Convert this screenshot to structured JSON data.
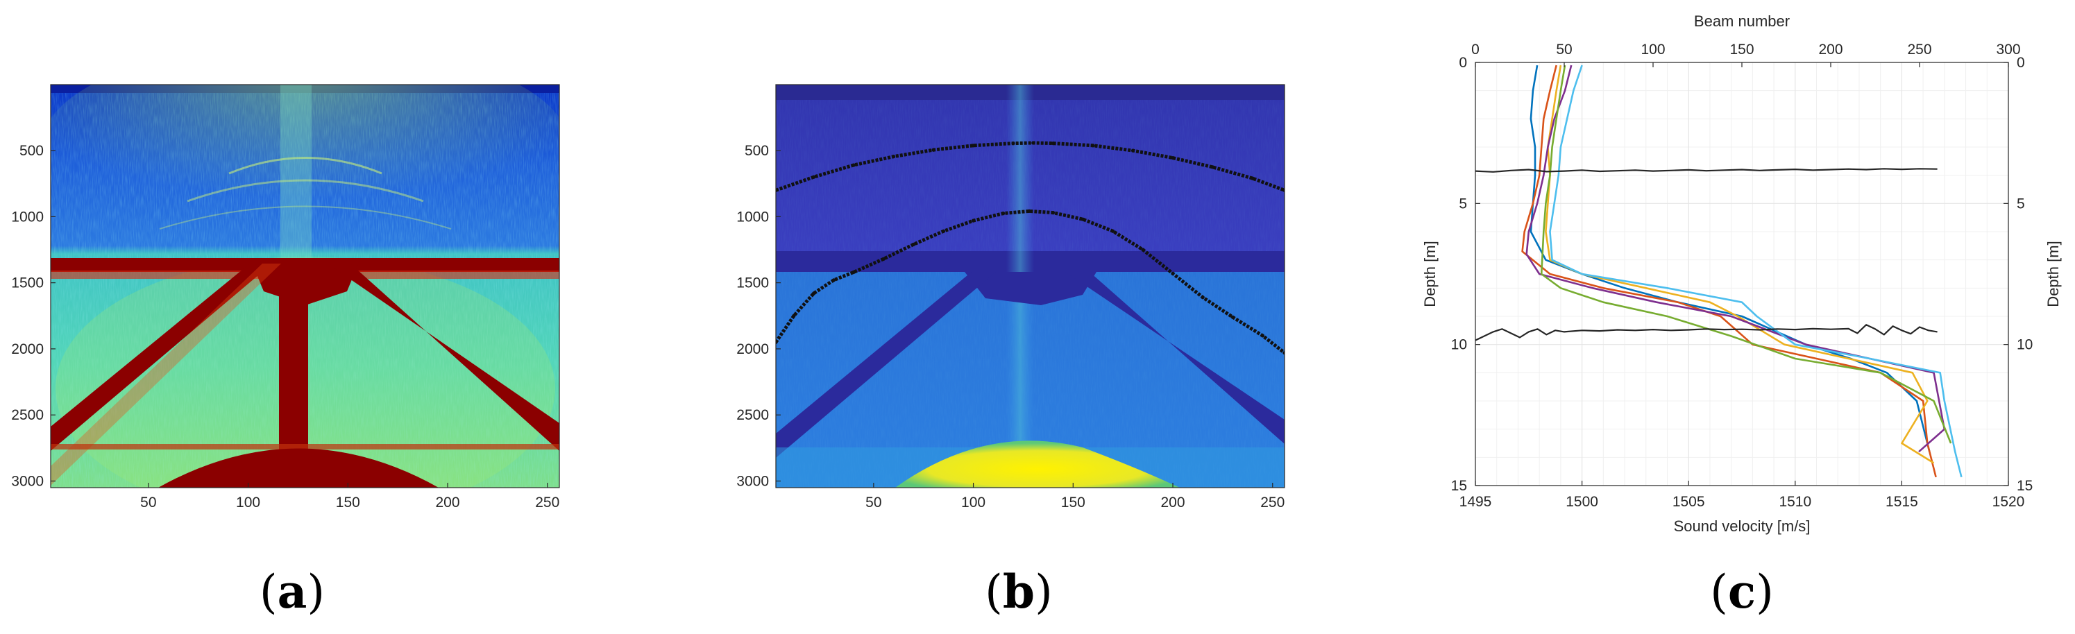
{
  "panel_labels": {
    "a": {
      "open": "(",
      "letter": "a",
      "close": ")"
    },
    "b": {
      "open": "(",
      "letter": "b",
      "close": ")"
    },
    "c": {
      "open": "(",
      "letter": "c",
      "close": ")"
    }
  },
  "colors": {
    "jet_background": "#1f5fd6",
    "jet_saturated": "#8b0000",
    "parula_background": "#3338b8",
    "parula_beam_band": "#2b2a9c",
    "parula_bright": "#ffeb00",
    "trace_black": "#111111",
    "gridline": "#e6e6e6"
  },
  "chart_data": [
    {
      "type": "heatmap",
      "panel": "a",
      "colormap": "jet",
      "title": "",
      "xlabel": "",
      "ylabel": "",
      "xlim": [
        1,
        256
      ],
      "ylim": [
        3050,
        1
      ],
      "y_reversed": true,
      "xticks": [
        50,
        100,
        150,
        200,
        250
      ],
      "yticks": [
        500,
        1000,
        1500,
        2000,
        2500,
        3000
      ],
      "features": [
        {
          "name": "",
          "kind": "horizontal band",
          "sample_range": [
            1310,
            1420
          ]
        },
        {
          "name": "",
          "kind": "vertical band",
          "beam_range": [
            112,
            132
          ]
        },
        {
          "name": "",
          "kind": "diagonal band",
          "from": [
            75,
            1330
          ],
          "to": [
            1,
            2680
          ]
        },
        {
          "name": "",
          "kind": "diagonal band",
          "from": [
            170,
            1330
          ],
          "to": [
            256,
            2580
          ]
        },
        {
          "name": "",
          "kind": "arc",
          "beam_range": [
            50,
            195
          ],
          "apex_sample": 2720
        }
      ]
    },
    {
      "type": "heatmap",
      "panel": "b",
      "colormap": "parula",
      "title": "",
      "xlabel": "",
      "ylabel": "",
      "xlim": [
        1,
        256
      ],
      "ylim": [
        3050,
        1
      ],
      "y_reversed": true,
      "xticks": [
        50,
        100,
        150,
        200,
        250
      ],
      "yticks": [
        500,
        1000,
        1500,
        2000,
        2500,
        3000
      ],
      "series": [
        {
          "name": "",
          "points": [
            [
              1,
              800
            ],
            [
              20,
              700
            ],
            [
              40,
              610
            ],
            [
              60,
              545
            ],
            [
              80,
              495
            ],
            [
              100,
              462
            ],
            [
              120,
              445
            ],
            [
              130,
              442
            ],
            [
              140,
              445
            ],
            [
              160,
              462
            ],
            [
              180,
              500
            ],
            [
              200,
              555
            ],
            [
              220,
              625
            ],
            [
              240,
              710
            ],
            [
              256,
              800
            ]
          ]
        },
        {
          "name": "",
          "points": [
            [
              1,
              1950
            ],
            [
              10,
              1750
            ],
            [
              20,
              1580
            ],
            [
              30,
              1480
            ],
            [
              40,
              1420
            ],
            [
              55,
              1320
            ],
            [
              70,
              1210
            ],
            [
              85,
              1110
            ],
            [
              100,
              1030
            ],
            [
              115,
              975
            ],
            [
              128,
              958
            ],
            [
              140,
              970
            ],
            [
              155,
              1020
            ],
            [
              170,
              1110
            ],
            [
              185,
              1250
            ],
            [
              200,
              1430
            ],
            [
              215,
              1610
            ],
            [
              230,
              1760
            ],
            [
              245,
              1900
            ],
            [
              256,
              2030
            ]
          ]
        }
      ]
    },
    {
      "type": "line",
      "panel": "c",
      "title": "",
      "xlabel": "Sound velocity [m/s]",
      "ylabel": "Depth [m]",
      "x2label": "Beam number",
      "y2label": "Depth [m]",
      "xlim": [
        1495,
        1520
      ],
      "x2lim": [
        0,
        300
      ],
      "ylim": [
        15,
        0
      ],
      "y_reversed": true,
      "grid": true,
      "xticks": [
        1495,
        1500,
        1505,
        1510,
        1515,
        1520
      ],
      "x2ticks": [
        0,
        50,
        100,
        150,
        200,
        250,
        300
      ],
      "yticks": [
        0,
        5,
        10,
        15
      ],
      "series": [
        {
          "color": "#0072bd",
          "x": [
            1497.9,
            1497.7,
            1497.6,
            1497.8,
            1497.8,
            1497.7,
            1497.6,
            1498.3,
            1500.0,
            1502.0,
            1504.5,
            1507.5,
            1510.5,
            1512.6,
            1514.3,
            1515.7,
            1516.3
          ],
          "y": [
            0.1,
            1,
            2,
            3,
            4,
            5,
            6,
            7,
            7.5,
            8,
            8.5,
            9,
            10,
            10.5,
            11,
            12,
            13.8
          ]
        },
        {
          "color": "#d95319",
          "x": [
            1498.8,
            1498.5,
            1498.2,
            1498.1,
            1498.0,
            1497.7,
            1497.3,
            1497.2,
            1498.5,
            1501.0,
            1504.5,
            1506.5,
            1508.0,
            1511.0,
            1514.0,
            1516.0,
            1516.2,
            1516.6
          ],
          "y": [
            0.1,
            1,
            2,
            3,
            4,
            5,
            6,
            6.7,
            7.5,
            8,
            8.5,
            9,
            10,
            10.5,
            11,
            12,
            13.5,
            14.7
          ]
        },
        {
          "color": "#edb120",
          "x": [
            1499.0,
            1498.8,
            1498.6,
            1498.4,
            1498.5,
            1498.4,
            1498.3,
            1498.5,
            1500.0,
            1503.0,
            1506.0,
            1507.3,
            1509.5,
            1512.5,
            1515.5,
            1516.2,
            1515.0,
            1516.5
          ],
          "y": [
            0.1,
            1,
            2,
            3,
            4,
            5,
            6,
            7,
            7.5,
            8,
            8.5,
            9,
            10,
            10.5,
            11,
            12,
            13.5,
            14.2
          ]
        },
        {
          "color": "#7e2f8e",
          "x": [
            1499.5,
            1499.2,
            1498.7,
            1498.4,
            1498.2,
            1497.9,
            1497.5,
            1497.4,
            1498.0,
            1500.5,
            1503.5,
            1507.0,
            1510.5,
            1513.5,
            1516.5,
            1517.0,
            1515.8
          ],
          "y": [
            0.1,
            1,
            2,
            3,
            4,
            5,
            6,
            6.8,
            7.5,
            8,
            8.5,
            9,
            10,
            10.5,
            11,
            13,
            13.8
          ]
        },
        {
          "color": "#77ac30",
          "x": [
            1499.2,
            1499.0,
            1498.8,
            1498.6,
            1498.5,
            1498.3,
            1498.2,
            1498.1,
            1499.0,
            1501.0,
            1504.0,
            1507.0,
            1510.0,
            1514.0,
            1516.5,
            1517.3
          ],
          "y": [
            0.1,
            1,
            2,
            3,
            4,
            5,
            6,
            7.5,
            8,
            8.5,
            9,
            9.7,
            10.5,
            11,
            12,
            13.5
          ]
        },
        {
          "color": "#4dbeee",
          "x": [
            1500.0,
            1499.6,
            1499.3,
            1499.0,
            1498.9,
            1498.7,
            1498.5,
            1498.6,
            1500.0,
            1504.0,
            1507.5,
            1508.2,
            1510.0,
            1513.5,
            1516.8,
            1517.0,
            1517.5,
            1517.8
          ],
          "y": [
            0.1,
            1,
            2,
            3,
            4,
            5,
            6,
            7,
            7.5,
            8,
            8.5,
            9,
            10,
            10.5,
            11,
            12,
            13.8,
            14.7
          ]
        },
        {
          "color": "#262626",
          "x2": [
            0,
            10,
            20,
            30,
            40,
            50,
            60,
            70,
            80,
            90,
            100,
            110,
            120,
            130,
            140,
            150,
            160,
            170,
            180,
            190,
            200,
            210,
            220,
            230,
            240,
            250,
            260
          ],
          "y": [
            3.85,
            3.88,
            3.83,
            3.8,
            3.87,
            3.85,
            3.82,
            3.86,
            3.84,
            3.82,
            3.85,
            3.83,
            3.81,
            3.84,
            3.82,
            3.8,
            3.83,
            3.81,
            3.79,
            3.82,
            3.8,
            3.78,
            3.8,
            3.77,
            3.79,
            3.77,
            3.78
          ]
        },
        {
          "color": "#262626",
          "x2": [
            0,
            5,
            10,
            15,
            20,
            25,
            30,
            35,
            40,
            45,
            50,
            60,
            70,
            80,
            90,
            100,
            110,
            120,
            130,
            140,
            150,
            160,
            170,
            180,
            190,
            200,
            210,
            215,
            220,
            225,
            230,
            235,
            240,
            245,
            250,
            255,
            260
          ],
          "y": [
            9.85,
            9.7,
            9.55,
            9.45,
            9.6,
            9.75,
            9.55,
            9.45,
            9.65,
            9.5,
            9.55,
            9.5,
            9.52,
            9.48,
            9.5,
            9.47,
            9.5,
            9.48,
            9.45,
            9.47,
            9.46,
            9.48,
            9.45,
            9.47,
            9.44,
            9.46,
            9.44,
            9.6,
            9.3,
            9.45,
            9.65,
            9.35,
            9.5,
            9.62,
            9.38,
            9.5,
            9.55
          ]
        }
      ]
    }
  ]
}
